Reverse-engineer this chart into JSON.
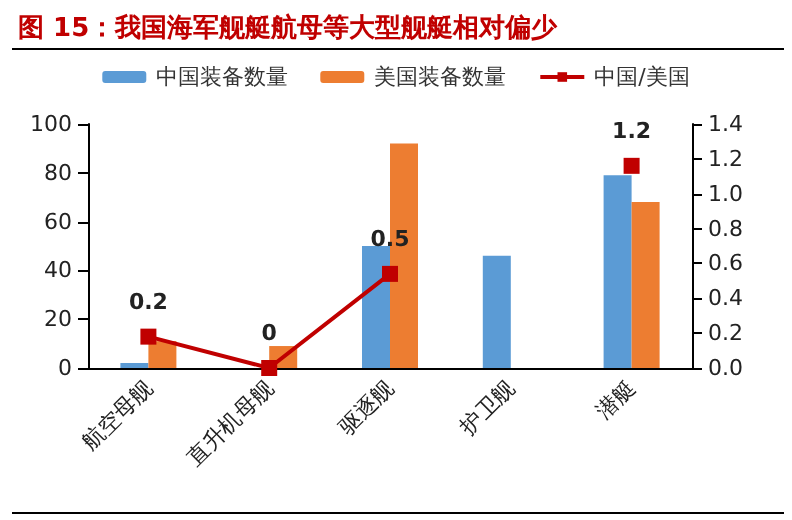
{
  "chart_data": {
    "type": "bar",
    "title": "图 15：我国海军舰艇航母等大型舰艇相对偏少",
    "categories": [
      "航空母舰",
      "直升机母舰",
      "驱逐舰",
      "护卫舰",
      "潜艇"
    ],
    "series": [
      {
        "name": "中国装备数量",
        "color": "#5b9bd5",
        "values": [
          2,
          0,
          50,
          46,
          79
        ]
      },
      {
        "name": "美国装备数量",
        "color": "#ed7d31",
        "values": [
          11,
          9,
          92,
          null,
          68
        ]
      },
      {
        "name": "中国/美国",
        "type": "line",
        "axis": "y2",
        "color": "#c00000",
        "marker": "square",
        "values": [
          0.18,
          0,
          0.54,
          null,
          1.16
        ],
        "value_labels": [
          "0.2",
          "0",
          "0.5",
          null,
          "1.2"
        ]
      }
    ],
    "ylim": [
      0,
      100
    ],
    "yticks": [
      0,
      20,
      40,
      60,
      80,
      100
    ],
    "y2lim": [
      0,
      1.4
    ],
    "y2ticks": [
      {
        "value": 0,
        "label": "0.0"
      },
      0.2,
      0.4,
      0.6,
      0.8,
      {
        "value": 1,
        "label": "1.0"
      },
      1.2,
      1.4
    ],
    "grid": false,
    "legend": "top"
  }
}
